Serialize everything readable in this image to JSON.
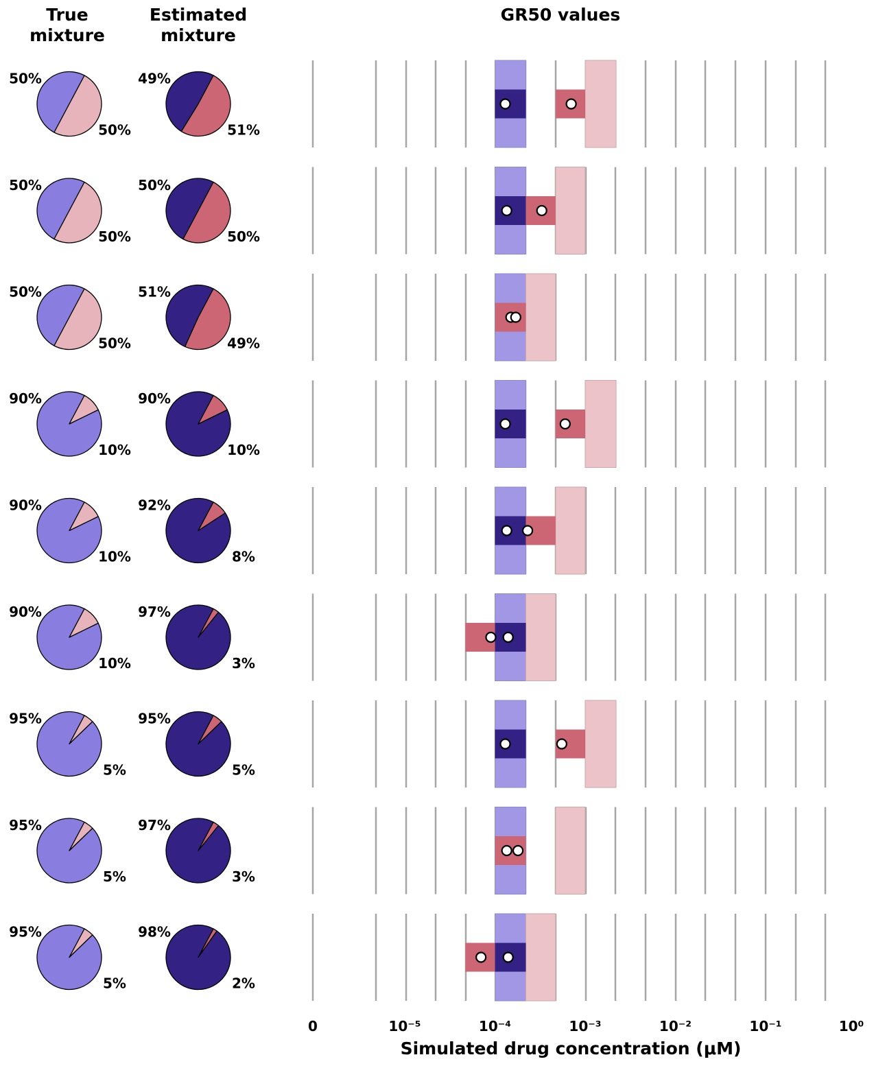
{
  "headers": {
    "true_mixture": [
      "True",
      "mixture"
    ],
    "estimated_mixture": [
      "Estimated",
      "mixture"
    ],
    "gr50": "GR50 values"
  },
  "colors": {
    "pop1_true": "#8a7de0",
    "pop2_true": "#e8b4bb",
    "pop1_est": "#332284",
    "pop2_est": "#cc6675",
    "pop1_band": "#a197e4",
    "pop2_band": "#ecc3c9",
    "grid": "#a6a6a6",
    "marker_fill": "#ffffff",
    "marker_edge": "#000000"
  },
  "chart_data": {
    "type": "pie+interval",
    "xlabel": "Simulated  drug  concentration  (μM)",
    "xscale": "symlog",
    "x_tick_labels": [
      "0",
      "10⁻⁵",
      "10⁻⁴",
      "10⁻³",
      "10⁻²",
      "10⁻¹",
      "10⁰"
    ],
    "x_tick_values": [
      0,
      1e-05,
      0.0001,
      0.001,
      0.01,
      0.1,
      1
    ],
    "true_bins": [
      [
        0.0001,
        0.00022
      ],
      [
        0.00022,
        0.00047
      ],
      [
        0.00047,
        0.001
      ],
      [
        0.001,
        0.0022
      ]
    ],
    "rows": [
      {
        "true": [
          50,
          50
        ],
        "true_labels": [
          "50%",
          "50%"
        ],
        "est": [
          49,
          51
        ],
        "est_labels": [
          "49%",
          "51%"
        ],
        "pop1_true_bin": [
          0.0001,
          0.00022
        ],
        "pop2_true_bin": [
          0.001,
          0.0022
        ],
        "pop1_est_bin": [
          0.0001,
          0.00022
        ],
        "pop2_est_bin": [
          0.00047,
          0.001
        ],
        "pop1_gr50": 0.00013,
        "pop2_gr50": 0.0007
      },
      {
        "true": [
          50,
          50
        ],
        "true_labels": [
          "50%",
          "50%"
        ],
        "est": [
          50,
          50
        ],
        "est_labels": [
          "50%",
          "50%"
        ],
        "pop1_true_bin": [
          0.0001,
          0.00022
        ],
        "pop2_true_bin": [
          0.00047,
          0.001
        ],
        "pop1_est_bin": [
          0.0001,
          0.00022
        ],
        "pop2_est_bin": [
          0.00022,
          0.00047
        ],
        "pop1_gr50": 0.000135,
        "pop2_gr50": 0.00033
      },
      {
        "true": [
          50,
          50
        ],
        "true_labels": [
          "50%",
          "50%"
        ],
        "est": [
          51,
          49
        ],
        "est_labels": [
          "51%",
          "49%"
        ],
        "pop1_true_bin": [
          0.0001,
          0.00022
        ],
        "pop2_true_bin": [
          0.00022,
          0.00047
        ],
        "pop1_est_bin": null,
        "pop2_est_bin": [
          0.0001,
          0.00022
        ],
        "pop1_gr50": 0.00015,
        "pop2_gr50": 0.00017
      },
      {
        "true": [
          90,
          10
        ],
        "true_labels": [
          "90%",
          "10%"
        ],
        "est": [
          90,
          10
        ],
        "est_labels": [
          "90%",
          "10%"
        ],
        "pop1_true_bin": [
          0.0001,
          0.00022
        ],
        "pop2_true_bin": [
          0.001,
          0.0022
        ],
        "pop1_est_bin": [
          0.0001,
          0.00022
        ],
        "pop2_est_bin": [
          0.00047,
          0.001
        ],
        "pop1_gr50": 0.00013,
        "pop2_gr50": 0.0006
      },
      {
        "true": [
          90,
          10
        ],
        "true_labels": [
          "90%",
          "10%"
        ],
        "est": [
          92,
          8
        ],
        "est_labels": [
          "92%",
          "8%"
        ],
        "pop1_true_bin": [
          0.0001,
          0.00022
        ],
        "pop2_true_bin": [
          0.00047,
          0.001
        ],
        "pop1_est_bin": [
          0.0001,
          0.00022
        ],
        "pop2_est_bin": [
          0.00022,
          0.00047
        ],
        "pop1_gr50": 0.000135,
        "pop2_gr50": 0.00023
      },
      {
        "true": [
          90,
          10
        ],
        "true_labels": [
          "90%",
          "10%"
        ],
        "est": [
          97,
          3
        ],
        "est_labels": [
          "97%",
          "3%"
        ],
        "pop1_true_bin": [
          0.0001,
          0.00022
        ],
        "pop2_true_bin": [
          0.00022,
          0.00047
        ],
        "pop1_est_bin": [
          0.0001,
          0.00022
        ],
        "pop2_est_bin": [
          4.7e-05,
          0.0001
        ],
        "pop1_gr50": 0.00014,
        "pop2_gr50": 9e-05
      },
      {
        "true": [
          95,
          5
        ],
        "true_labels": [
          "95%",
          "5%"
        ],
        "est": [
          95,
          5
        ],
        "est_labels": [
          "95%",
          "5%"
        ],
        "pop1_true_bin": [
          0.0001,
          0.00022
        ],
        "pop2_true_bin": [
          0.001,
          0.0022
        ],
        "pop1_est_bin": [
          0.0001,
          0.00022
        ],
        "pop2_est_bin": [
          0.00047,
          0.001
        ],
        "pop1_gr50": 0.00013,
        "pop2_gr50": 0.00055
      },
      {
        "true": [
          95,
          5
        ],
        "true_labels": [
          "95%",
          "5%"
        ],
        "est": [
          97,
          3
        ],
        "est_labels": [
          "97%",
          "3%"
        ],
        "pop1_true_bin": [
          0.0001,
          0.00022
        ],
        "pop2_true_bin": [
          0.00047,
          0.001
        ],
        "pop1_est_bin": null,
        "pop2_est_bin": [
          0.0001,
          0.00022
        ],
        "pop1_gr50": 0.000135,
        "pop2_gr50": 0.00018
      },
      {
        "true": [
          95,
          5
        ],
        "true_labels": [
          "95%",
          "5%"
        ],
        "est": [
          98,
          2
        ],
        "est_labels": [
          "98%",
          "2%"
        ],
        "pop1_true_bin": [
          0.0001,
          0.00022
        ],
        "pop2_true_bin": [
          0.00022,
          0.00047
        ],
        "pop1_est_bin": [
          0.0001,
          0.00022
        ],
        "pop2_est_bin": [
          4.7e-05,
          0.0001
        ],
        "pop1_gr50": 0.00014,
        "pop2_gr50": 7e-05
      }
    ]
  }
}
